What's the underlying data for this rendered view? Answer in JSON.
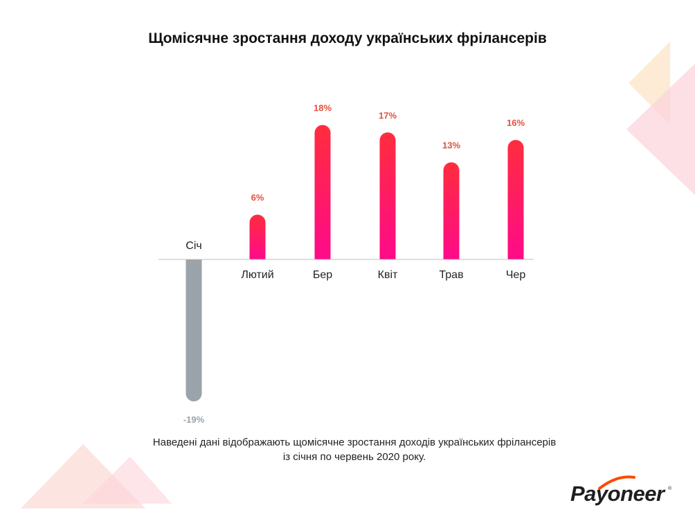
{
  "title": "Щомісячне зростання доходу українських фрілансерів",
  "caption": {
    "line1": "Наведені дані відображають щомісячне зростання доходів українських фрілансерів",
    "line2": "із січня по червень 2020 року."
  },
  "logo": {
    "text": "Payoneer",
    "registered": "®"
  },
  "colors": {
    "positive_top": "#ff2d3d",
    "positive_bottom": "#ff0a8a",
    "negative": "#9aa3a9",
    "positive_label": "#e3503a",
    "negative_label": "#9aa3a9",
    "baseline": "#bdbdbd"
  },
  "chart_data": {
    "type": "bar",
    "title": "Щомісячне зростання доходу українських фрілансерів",
    "categories": [
      "Січ",
      "Лютий",
      "Бер",
      "Квіт",
      "Трав",
      "Чер"
    ],
    "values": [
      -19,
      6,
      18,
      17,
      13,
      16
    ],
    "data_labels": [
      "-19%",
      "6%",
      "18%",
      "17%",
      "13%",
      "16%"
    ],
    "unit": "%",
    "ylim": [
      -19,
      18
    ],
    "grid": false,
    "legend": "none",
    "baseline_at": 0
  }
}
